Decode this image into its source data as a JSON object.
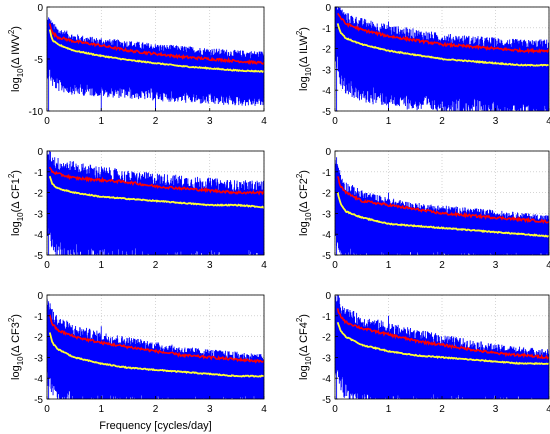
{
  "colors": {
    "raw": "#0000ff",
    "envelope": "#ff0000",
    "mean": "#ffff33",
    "axes": "#000000",
    "grid": "#bbbbbb"
  },
  "chart_data": [
    {
      "type": "line",
      "ylabel_main": "log",
      "ylabel_sub": "10",
      "ylabel_paren": "(Δ IWV",
      "ylabel_sup": "2",
      "xlabel": "",
      "xlim": [
        0,
        4
      ],
      "ylim": [
        -10,
        0
      ],
      "xticks": [
        "0",
        "1",
        "2",
        "3",
        "4"
      ],
      "yticks": [
        "0",
        "-5",
        "-10"
      ],
      "ytick_values": [
        0,
        -5,
        -10
      ],
      "grid": true,
      "series": [
        {
          "style": "raw-spectrum",
          "x": [
            0.05,
            0.1,
            0.2,
            0.5,
            1.0,
            1.5,
            2.0,
            2.5,
            3.0,
            3.5,
            4.0
          ],
          "upper": [
            -1.8,
            -2.3,
            -2.8,
            -3.4,
            -3.8,
            -4.0,
            -4.3,
            -4.5,
            -4.7,
            -4.9,
            -5.0
          ],
          "lower": [
            -6.0,
            -6.8,
            -7.2,
            -7.6,
            -7.8,
            -8.0,
            -8.2,
            -8.4,
            -8.6,
            -8.7,
            -8.8
          ]
        },
        {
          "style": "envelope",
          "x": [
            0.05,
            0.1,
            0.2,
            0.5,
            1.0,
            1.5,
            2.0,
            2.5,
            3.0,
            3.5,
            4.0
          ],
          "y": [
            -1.5,
            -2.5,
            -2.9,
            -3.3,
            -3.7,
            -4.2,
            -4.5,
            -4.8,
            -5.0,
            -5.2,
            -5.4
          ]
        },
        {
          "style": "mean",
          "x": [
            0.05,
            0.1,
            0.2,
            0.5,
            1.0,
            1.5,
            2.0,
            2.5,
            3.0,
            3.5,
            4.0
          ],
          "y": [
            -2.2,
            -3.2,
            -3.6,
            -4.2,
            -4.7,
            -5.1,
            -5.4,
            -5.7,
            -5.9,
            -6.1,
            -6.2
          ]
        }
      ],
      "spikes": [
        {
          "x": 1.0,
          "y": -3.0
        },
        {
          "x": 2.0,
          "y": -4.1
        },
        {
          "x": 0.03,
          "y": -1.0
        }
      ]
    },
    {
      "type": "line",
      "ylabel_main": "log",
      "ylabel_sub": "10",
      "ylabel_paren": "(Δ ILW",
      "ylabel_sup": "2",
      "xlabel": "",
      "xlim": [
        0,
        4
      ],
      "ylim": [
        -5,
        0
      ],
      "xticks": [
        "0",
        "1",
        "2",
        "3",
        "4"
      ],
      "yticks": [
        "0",
        "-1",
        "-2",
        "-3",
        "-4",
        "-5"
      ],
      "ytick_values": [
        0,
        -1,
        -2,
        -3,
        -4,
        -5
      ],
      "grid": true,
      "series": [
        {
          "style": "raw-spectrum",
          "x": [
            0.05,
            0.1,
            0.2,
            0.5,
            1.0,
            1.5,
            2.0,
            2.5,
            3.0,
            3.5,
            4.0
          ],
          "upper": [
            -0.2,
            -0.5,
            -0.8,
            -1.1,
            -1.4,
            -1.6,
            -1.8,
            -1.9,
            -2.0,
            -2.1,
            -2.1
          ],
          "lower": [
            -2.5,
            -3.2,
            -3.6,
            -4.0,
            -4.2,
            -4.4,
            -4.5,
            -4.6,
            -4.7,
            -4.8,
            -4.9
          ]
        },
        {
          "style": "envelope",
          "x": [
            0.05,
            0.1,
            0.2,
            0.5,
            1.0,
            1.5,
            2.0,
            2.5,
            3.0,
            3.5,
            4.0
          ],
          "y": [
            -0.3,
            -0.5,
            -0.8,
            -1.1,
            -1.4,
            -1.6,
            -1.8,
            -1.9,
            -2.0,
            -2.1,
            -2.1
          ]
        },
        {
          "style": "mean",
          "x": [
            0.05,
            0.1,
            0.2,
            0.5,
            1.0,
            1.5,
            2.0,
            2.5,
            3.0,
            3.5,
            4.0
          ],
          "y": [
            -0.8,
            -1.2,
            -1.5,
            -1.8,
            -2.1,
            -2.3,
            -2.5,
            -2.6,
            -2.7,
            -2.8,
            -2.8
          ]
        }
      ],
      "spikes": [
        {
          "x": 1.0,
          "y": -0.7
        },
        {
          "x": 0.03,
          "y": -0.1
        }
      ]
    },
    {
      "type": "line",
      "ylabel_main": "log",
      "ylabel_sub": "10",
      "ylabel_paren": "(Δ CF1",
      "ylabel_sup": "2",
      "xlabel": "",
      "xlim": [
        0,
        4
      ],
      "ylim": [
        -5,
        0
      ],
      "xticks": [
        "0",
        "1",
        "2",
        "3",
        "4"
      ],
      "yticks": [
        "0",
        "-1",
        "-2",
        "-3",
        "-4",
        "-5"
      ],
      "ytick_values": [
        0,
        -1,
        -2,
        -3,
        -4,
        -5
      ],
      "grid": true,
      "series": [
        {
          "style": "raw-spectrum",
          "x": [
            0.05,
            0.1,
            0.2,
            0.5,
            1.0,
            1.5,
            2.0,
            2.5,
            3.0,
            3.5,
            4.0
          ],
          "upper": [
            -0.5,
            -0.8,
            -1.0,
            -1.2,
            -1.4,
            -1.6,
            -1.7,
            -1.8,
            -1.9,
            -2.0,
            -2.0
          ],
          "lower": [
            -3.5,
            -4.2,
            -4.5,
            -4.7,
            -4.8,
            -4.9,
            -5.0,
            -5.0,
            -5.0,
            -5.0,
            -5.0
          ]
        },
        {
          "style": "envelope",
          "x": [
            0.05,
            0.1,
            0.2,
            0.5,
            1.0,
            1.5,
            2.0,
            2.5,
            3.0,
            3.5,
            4.0
          ],
          "y": [
            -0.8,
            -1.0,
            -1.1,
            -1.3,
            -1.4,
            -1.5,
            -1.7,
            -1.8,
            -1.9,
            -2.0,
            -2.0
          ]
        },
        {
          "style": "mean",
          "x": [
            0.05,
            0.1,
            0.2,
            0.5,
            1.0,
            1.5,
            2.0,
            2.5,
            3.0,
            3.5,
            4.0
          ],
          "y": [
            -1.2,
            -1.6,
            -1.8,
            -2.0,
            -2.2,
            -2.3,
            -2.4,
            -2.5,
            -2.6,
            -2.6,
            -2.7
          ]
        }
      ],
      "spikes": [
        {
          "x": 1.0,
          "y": -1.0
        },
        {
          "x": 0.03,
          "y": -0.3
        }
      ]
    },
    {
      "type": "line",
      "ylabel_main": "log",
      "ylabel_sub": "10",
      "ylabel_paren": "(Δ CF2",
      "ylabel_sup": "2",
      "xlabel": "",
      "xlim": [
        0,
        4
      ],
      "ylim": [
        -5,
        0
      ],
      "xticks": [
        "0",
        "1",
        "2",
        "3",
        "4"
      ],
      "yticks": [
        "0",
        "-1",
        "-2",
        "-3",
        "-4",
        "-5"
      ],
      "ytick_values": [
        0,
        -1,
        -2,
        -3,
        -4,
        -5
      ],
      "grid": true,
      "series": [
        {
          "style": "raw-spectrum",
          "x": [
            0.05,
            0.1,
            0.2,
            0.5,
            1.0,
            1.5,
            2.0,
            2.5,
            3.0,
            3.5,
            4.0
          ],
          "upper": [
            -1.0,
            -1.6,
            -2.0,
            -2.4,
            -2.7,
            -2.9,
            -3.0,
            -3.1,
            -3.2,
            -3.3,
            -3.4
          ],
          "lower": [
            -4.0,
            -4.6,
            -4.8,
            -5.0,
            -5.0,
            -5.0,
            -5.0,
            -5.0,
            -5.0,
            -5.0,
            -5.0
          ]
        },
        {
          "style": "envelope",
          "x": [
            0.05,
            0.1,
            0.2,
            0.5,
            1.0,
            1.5,
            2.0,
            2.5,
            3.0,
            3.5,
            4.0
          ],
          "y": [
            -1.2,
            -1.7,
            -2.0,
            -2.4,
            -2.6,
            -2.8,
            -3.0,
            -3.1,
            -3.2,
            -3.3,
            -3.4
          ]
        },
        {
          "style": "mean",
          "x": [
            0.05,
            0.1,
            0.2,
            0.5,
            1.0,
            1.5,
            2.0,
            2.5,
            3.0,
            3.5,
            4.0
          ],
          "y": [
            -2.0,
            -2.5,
            -2.9,
            -3.2,
            -3.5,
            -3.6,
            -3.7,
            -3.8,
            -3.9,
            -4.0,
            -4.1
          ]
        }
      ],
      "spikes": [
        {
          "x": 1.0,
          "y": -2.0
        },
        {
          "x": 0.03,
          "y": -0.3
        }
      ]
    },
    {
      "type": "line",
      "ylabel_main": "log",
      "ylabel_sub": "10",
      "ylabel_paren": "(Δ CF3",
      "ylabel_sup": "2",
      "xlabel": "Frequency [cycles/day]",
      "xlim": [
        0,
        4
      ],
      "ylim": [
        -5,
        0
      ],
      "xticks": [
        "0",
        "1",
        "2",
        "3",
        "4"
      ],
      "yticks": [
        "0",
        "-1",
        "-2",
        "-3",
        "-4",
        "-5"
      ],
      "ytick_values": [
        0,
        -1,
        -2,
        -3,
        -4,
        -5
      ],
      "grid": true,
      "series": [
        {
          "style": "raw-spectrum",
          "x": [
            0.05,
            0.1,
            0.2,
            0.5,
            1.0,
            1.5,
            2.0,
            2.5,
            3.0,
            3.5,
            4.0
          ],
          "upper": [
            -0.8,
            -1.3,
            -1.6,
            -2.0,
            -2.3,
            -2.5,
            -2.7,
            -2.9,
            -3.0,
            -3.1,
            -3.2
          ],
          "lower": [
            -3.8,
            -4.4,
            -4.7,
            -4.9,
            -5.0,
            -5.0,
            -5.0,
            -5.0,
            -5.0,
            -5.0,
            -5.0
          ]
        },
        {
          "style": "envelope",
          "x": [
            0.05,
            0.1,
            0.2,
            0.5,
            1.0,
            1.5,
            2.0,
            2.5,
            3.0,
            3.5,
            4.0
          ],
          "y": [
            -1.0,
            -1.4,
            -1.7,
            -2.0,
            -2.3,
            -2.5,
            -2.7,
            -2.9,
            -3.0,
            -3.1,
            -3.2
          ]
        },
        {
          "style": "mean",
          "x": [
            0.05,
            0.1,
            0.2,
            0.5,
            1.0,
            1.5,
            2.0,
            2.5,
            3.0,
            3.5,
            4.0
          ],
          "y": [
            -1.8,
            -2.3,
            -2.6,
            -3.0,
            -3.3,
            -3.5,
            -3.6,
            -3.7,
            -3.8,
            -3.9,
            -3.9
          ]
        }
      ],
      "spikes": [
        {
          "x": 1.0,
          "y": -1.5
        },
        {
          "x": 0.03,
          "y": -0.3
        }
      ]
    },
    {
      "type": "line",
      "ylabel_main": "log",
      "ylabel_sub": "10",
      "ylabel_paren": "(Δ CF4",
      "ylabel_sup": "2",
      "xlabel": "",
      "xlim": [
        0,
        4
      ],
      "ylim": [
        -5,
        0
      ],
      "xticks": [
        "0",
        "1",
        "2",
        "3",
        "4"
      ],
      "yticks": [
        "0",
        "-1",
        "-2",
        "-3",
        "-4",
        "-5"
      ],
      "ytick_values": [
        0,
        -1,
        -2,
        -3,
        -4,
        -5
      ],
      "grid": true,
      "series": [
        {
          "style": "raw-spectrum",
          "x": [
            0.05,
            0.1,
            0.2,
            0.5,
            1.0,
            1.5,
            2.0,
            2.5,
            3.0,
            3.5,
            4.0
          ],
          "upper": [
            -0.5,
            -0.9,
            -1.2,
            -1.6,
            -1.9,
            -2.2,
            -2.4,
            -2.6,
            -2.8,
            -2.9,
            -3.0
          ],
          "lower": [
            -3.5,
            -4.1,
            -4.4,
            -4.7,
            -4.9,
            -5.0,
            -5.0,
            -5.0,
            -5.0,
            -5.0,
            -5.0
          ]
        },
        {
          "style": "envelope",
          "x": [
            0.05,
            0.1,
            0.2,
            0.5,
            1.0,
            1.5,
            2.0,
            2.5,
            3.0,
            3.5,
            4.0
          ],
          "y": [
            -0.7,
            -1.0,
            -1.3,
            -1.6,
            -1.9,
            -2.2,
            -2.4,
            -2.6,
            -2.8,
            -2.9,
            -3.0
          ]
        },
        {
          "style": "mean",
          "x": [
            0.05,
            0.1,
            0.2,
            0.5,
            1.0,
            1.5,
            2.0,
            2.5,
            3.0,
            3.5,
            4.0
          ],
          "y": [
            -1.3,
            -1.7,
            -2.0,
            -2.4,
            -2.7,
            -2.9,
            -3.0,
            -3.1,
            -3.2,
            -3.3,
            -3.3
          ]
        }
      ],
      "spikes": [
        {
          "x": 1.0,
          "y": -1.0
        },
        {
          "x": 0.03,
          "y": -0.3
        }
      ]
    }
  ]
}
